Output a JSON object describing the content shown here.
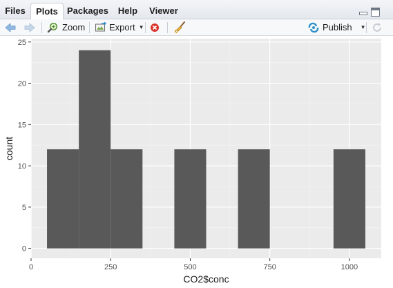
{
  "tabs": [
    {
      "label": "Files",
      "active": false
    },
    {
      "label": "Plots",
      "active": true
    },
    {
      "label": "Packages",
      "active": false
    },
    {
      "label": "Help",
      "active": false
    },
    {
      "label": "Viewer",
      "active": false
    }
  ],
  "toolbar": {
    "zoom_label": "Zoom",
    "export_label": "Export",
    "publish_label": "Publish",
    "icons": [
      "back-arrow-icon",
      "forward-arrow-icon",
      "zoom-icon",
      "export-icon",
      "remove-plot-icon",
      "broom-icon",
      "publish-icon",
      "refresh-icon"
    ]
  },
  "colors": {
    "panel_bg": "#ebebeb",
    "grid_major": "#ffffff",
    "bar_fill": "#595959",
    "accent_blue": "#2f8fc9",
    "remove_red": "#d9342b"
  },
  "chart_data": {
    "type": "bar",
    "subtype": "histogram",
    "xlabel": "CO2$conc",
    "ylabel": "count",
    "xlim": [
      0,
      1100
    ],
    "ylim": [
      0,
      25
    ],
    "x_ticks": [
      0,
      250,
      500,
      750,
      1000
    ],
    "x_tick_labels": [
      "0",
      "250",
      "500",
      "750",
      "1000"
    ],
    "y_ticks": [
      0,
      5,
      10,
      15,
      20,
      25
    ],
    "y_tick_labels": [
      "0",
      "5",
      "10",
      "15",
      "20",
      "25"
    ],
    "bins": [
      {
        "x0": 50,
        "x1": 150,
        "count": 12
      },
      {
        "x0": 150,
        "x1": 250,
        "count": 24
      },
      {
        "x0": 250,
        "x1": 350,
        "count": 12
      },
      {
        "x0": 350,
        "x1": 450,
        "count": 0
      },
      {
        "x0": 450,
        "x1": 550,
        "count": 12
      },
      {
        "x0": 550,
        "x1": 650,
        "count": 0
      },
      {
        "x0": 650,
        "x1": 750,
        "count": 12
      },
      {
        "x0": 750,
        "x1": 850,
        "count": 0
      },
      {
        "x0": 850,
        "x1": 950,
        "count": 0
      },
      {
        "x0": 950,
        "x1": 1050,
        "count": 12
      }
    ],
    "grid": true
  }
}
